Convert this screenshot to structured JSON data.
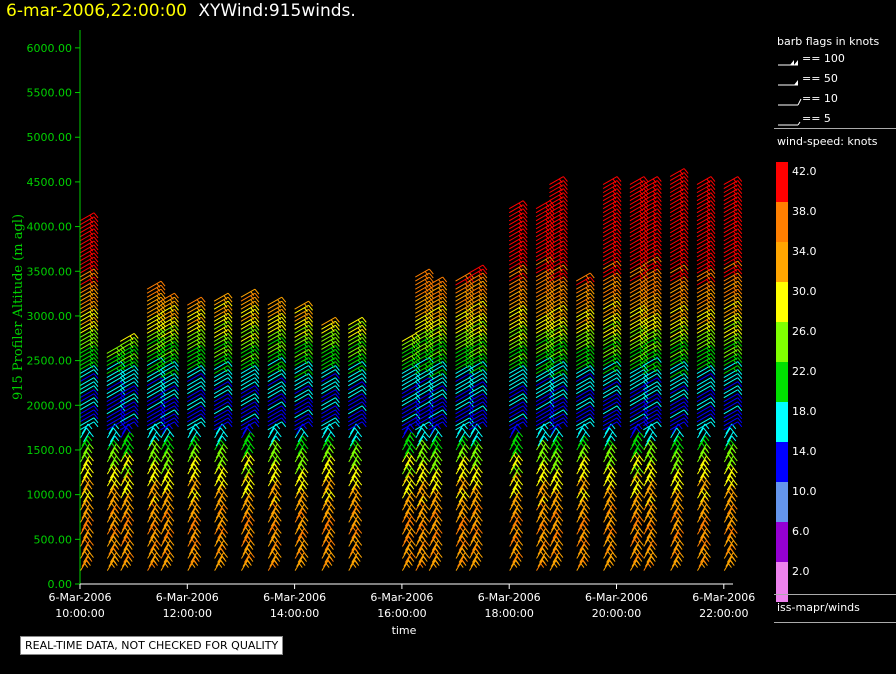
{
  "header": {
    "timestamp": "6-mar-2006,22:00:00",
    "product": "XYWind:915winds."
  },
  "notice": "REAL-TIME DATA, NOT CHECKED FOR QUALITY",
  "legend": {
    "barb_title": "barb flags in knots",
    "barbs": [
      {
        "label": "== 100",
        "kind": "pennant2"
      },
      {
        "label": "== 50",
        "kind": "pennant"
      },
      {
        "label": "== 10",
        "kind": "full"
      },
      {
        "label": "== 5",
        "kind": "half"
      }
    ],
    "speed_title": "wind-speed: knots",
    "scale": [
      {
        "label": "42.0",
        "color": "#ff0000"
      },
      {
        "label": "38.0",
        "color": "#ff7f00"
      },
      {
        "label": "34.0",
        "color": "#ffa500"
      },
      {
        "label": "30.0",
        "color": "#ffff00"
      },
      {
        "label": "26.0",
        "color": "#80ff00"
      },
      {
        "label": "22.0",
        "color": "#00e000"
      },
      {
        "label": "18.0",
        "color": "#00ffff"
      },
      {
        "label": "14.0",
        "color": "#0000ff"
      },
      {
        "label": "10.0",
        "color": "#6495ed"
      },
      {
        "label": "6.0",
        "color": "#9400d3"
      },
      {
        "label": "2.0",
        "color": "#ee82ee"
      }
    ],
    "source": "iss-mapr/winds"
  },
  "chart_data": {
    "type": "scatter",
    "ylabel": "915 Profiler Altitude (m agl)",
    "xlabel": "time",
    "ylim": [
      0,
      6200
    ],
    "yticks": [
      "0.00",
      "500.00",
      "1000.00",
      "1500.00",
      "2000.00",
      "2500.00",
      "3000.00",
      "3500.00",
      "4000.00",
      "4500.00",
      "5000.00",
      "5500.00",
      "6000.00"
    ],
    "xlim": [
      10.0,
      22.5
    ],
    "xticks": [
      {
        "date": "6-Mar-2006",
        "time": "10:00:00"
      },
      {
        "date": "6-Mar-2006",
        "time": "12:00:00"
      },
      {
        "date": "6-Mar-2006",
        "time": "14:00:00"
      },
      {
        "date": "6-Mar-2006",
        "time": "16:00:00"
      },
      {
        "date": "6-Mar-2006",
        "time": "18:00:00"
      },
      {
        "date": "6-Mar-2006",
        "time": "20:00:00"
      },
      {
        "date": "6-Mar-2006",
        "time": "22:00:00"
      }
    ],
    "profile_hours": [
      10.0,
      10.5,
      10.75,
      11.25,
      11.5,
      12.0,
      12.5,
      13.0,
      13.5,
      14.0,
      14.5,
      15.0,
      16.0,
      16.25,
      16.5,
      17.0,
      17.25,
      18.0,
      18.5,
      18.75,
      19.25,
      19.75,
      20.25,
      20.5,
      21.0,
      21.5,
      22.0
    ],
    "profile_tops": [
      4100,
      2600,
      2750,
      3300,
      3200,
      3150,
      3200,
      3250,
      3150,
      3100,
      2900,
      2900,
      2750,
      3450,
      3350,
      3400,
      3500,
      4200,
      4200,
      4500,
      3400,
      4500,
      4500,
      4500,
      4600,
      4500,
      4500
    ],
    "speed_profile_knots": [
      {
        "alt": 200,
        "speed": 34
      },
      {
        "alt": 600,
        "speed": 36
      },
      {
        "alt": 1000,
        "speed": 32
      },
      {
        "alt": 1400,
        "speed": 26
      },
      {
        "alt": 1600,
        "speed": 18
      },
      {
        "alt": 1800,
        "speed": 14
      },
      {
        "alt": 2000,
        "speed": 15
      },
      {
        "alt": 2300,
        "speed": 18
      },
      {
        "alt": 2600,
        "speed": 24
      },
      {
        "alt": 2900,
        "speed": 30
      },
      {
        "alt": 3200,
        "speed": 36
      },
      {
        "alt": 3600,
        "speed": 42
      },
      {
        "alt": 4600,
        "speed": 44
      }
    ]
  }
}
